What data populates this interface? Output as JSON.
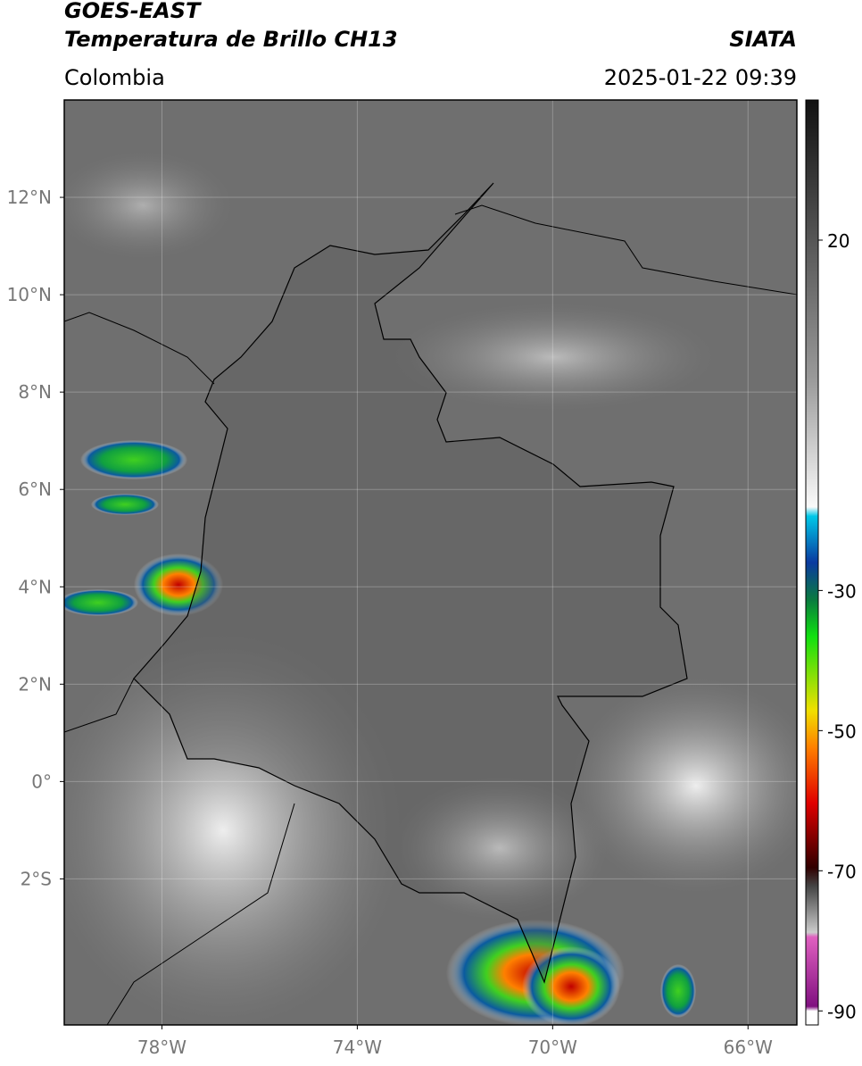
{
  "header": {
    "title": "GOES-EAST",
    "subtitle": "Temperatura de Brillo CH13",
    "source": "SIATA",
    "region": "Colombia",
    "datetime": "2025-01-22 09:39"
  },
  "map": {
    "xlim": [
      -80,
      -65
    ],
    "ylim": [
      -5,
      14
    ],
    "xticks": [
      {
        "value": -78,
        "label": "78°W"
      },
      {
        "value": -74,
        "label": "74°W"
      },
      {
        "value": -70,
        "label": "70°W"
      },
      {
        "value": -66,
        "label": "66°W"
      }
    ],
    "yticks": [
      {
        "value": 12,
        "label": "12°N"
      },
      {
        "value": 10,
        "label": "10°N"
      },
      {
        "value": 8,
        "label": "8°N"
      },
      {
        "value": 6,
        "label": "6°N"
      },
      {
        "value": 4,
        "label": "4°N"
      },
      {
        "value": 2,
        "label": "2°N"
      },
      {
        "value": 0,
        "label": "0°"
      },
      {
        "value": -2,
        "label": "2°S"
      }
    ],
    "grid": true
  },
  "colorbar": {
    "lim": [
      -92,
      40
    ],
    "ticks": [
      20,
      -30,
      -50,
      -70,
      -90
    ]
  }
}
